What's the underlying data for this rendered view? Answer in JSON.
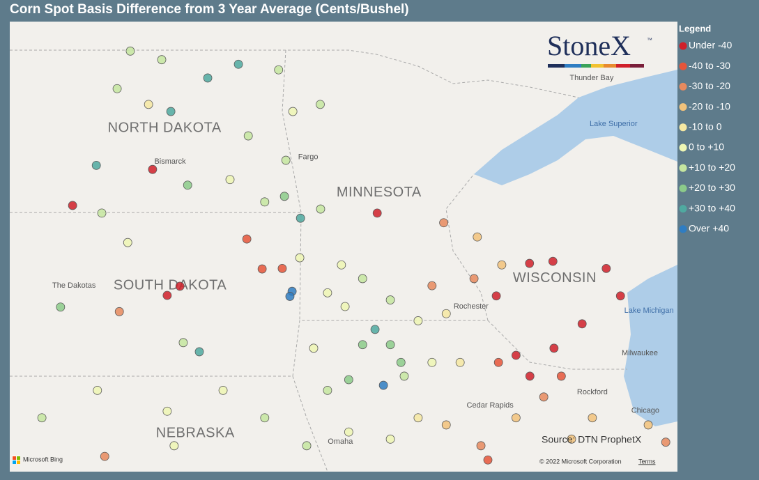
{
  "title": "Corn Spot Basis Difference from 3 Year Average (Cents/Bushel)",
  "legend": {
    "title": "Legend",
    "items": [
      {
        "label": "Under -40",
        "color": "#d0202a"
      },
      {
        "label": "-40 to -30",
        "color": "#e6553a"
      },
      {
        "label": "-30 to -20",
        "color": "#e88a5e"
      },
      {
        "label": "-20 to -10",
        "color": "#f2c27b"
      },
      {
        "label": "-10 to 0",
        "color": "#f6e8a2"
      },
      {
        "label": "0 to +10",
        "color": "#eef6b4"
      },
      {
        "label": "+10 to +20",
        "color": "#c6e6a0"
      },
      {
        "label": "+20 to +30",
        "color": "#8ccb8a"
      },
      {
        "label": "+30 to +40",
        "color": "#4fa9a0"
      },
      {
        "label": "Over +40",
        "color": "#2f7dc2"
      }
    ]
  },
  "map": {
    "bounds": {
      "west": -104.7,
      "east": -86.42,
      "north": 49.56,
      "south": 40.7
    },
    "places": [
      {
        "name": "NORTH DAKOTA",
        "kind": "state",
        "lon": -100.46,
        "lat": 47.46
      },
      {
        "name": "SOUTH DAKOTA",
        "kind": "state",
        "lon": -100.31,
        "lat": 44.36
      },
      {
        "name": "MINNESOTA",
        "kind": "state",
        "lon": -94.59,
        "lat": 46.19
      },
      {
        "name": "WISCONSIN",
        "kind": "state",
        "lon": -89.78,
        "lat": 44.5
      },
      {
        "name": "NEBRASKA",
        "kind": "state",
        "lon": -99.62,
        "lat": 41.45
      },
      {
        "name": "Bismarck",
        "kind": "city",
        "lon": -100.31,
        "lat": 46.8
      },
      {
        "name": "Fargo",
        "kind": "city",
        "lon": -96.53,
        "lat": 46.89
      },
      {
        "name": "The Dakotas",
        "kind": "city",
        "lon": -102.94,
        "lat": 44.36
      },
      {
        "name": "Thunder Bay",
        "kind": "city",
        "lon": -88.77,
        "lat": 48.45
      },
      {
        "name": "Lake Superior",
        "kind": "water",
        "lon": -88.17,
        "lat": 47.54
      },
      {
        "name": "Lake Michigan",
        "kind": "water",
        "lon": -87.2,
        "lat": 43.87
      },
      {
        "name": "Milwaukee",
        "kind": "city",
        "lon": -87.45,
        "lat": 43.03
      },
      {
        "name": "Rockford",
        "kind": "city",
        "lon": -88.75,
        "lat": 42.26
      },
      {
        "name": "Chicago",
        "kind": "city",
        "lon": -87.3,
        "lat": 41.9
      },
      {
        "name": "Omaha",
        "kind": "city",
        "lon": -95.65,
        "lat": 41.29
      },
      {
        "name": "Rochester",
        "kind": "city",
        "lon": -92.07,
        "lat": 43.95
      },
      {
        "name": "Cedar Rapids",
        "kind": "city",
        "lon": -91.55,
        "lat": 42.0
      }
    ],
    "points": [
      {
        "lon": -102.98,
        "lat": 45.94,
        "category": 0
      },
      {
        "lon": -100.79,
        "lat": 46.65,
        "category": 0
      },
      {
        "lon": -100.39,
        "lat": 44.17,
        "category": 0
      },
      {
        "lon": -100.04,
        "lat": 44.35,
        "category": 0
      },
      {
        "lon": -102.33,
        "lat": 46.73,
        "category": 8
      },
      {
        "lon": -100.29,
        "lat": 47.79,
        "category": 8
      },
      {
        "lon": -99.28,
        "lat": 48.45,
        "category": 8
      },
      {
        "lon": -98.44,
        "lat": 48.72,
        "category": 8
      },
      {
        "lon": -101.4,
        "lat": 48.98,
        "category": 6
      },
      {
        "lon": -100.54,
        "lat": 48.81,
        "category": 6
      },
      {
        "lon": -101.76,
        "lat": 48.24,
        "category": 6
      },
      {
        "lon": -100.9,
        "lat": 47.93,
        "category": 4
      },
      {
        "lon": -98.17,
        "lat": 47.31,
        "category": 6
      },
      {
        "lon": -96.95,
        "lat": 47.79,
        "category": 5
      },
      {
        "lon": -96.2,
        "lat": 47.93,
        "category": 6
      },
      {
        "lon": -98.67,
        "lat": 46.45,
        "category": 5
      },
      {
        "lon": -99.83,
        "lat": 46.34,
        "category": 7
      },
      {
        "lon": -101.47,
        "lat": 45.21,
        "category": 5
      },
      {
        "lon": -102.18,
        "lat": 45.79,
        "category": 6
      },
      {
        "lon": -103.31,
        "lat": 43.94,
        "category": 7
      },
      {
        "lon": -101.7,
        "lat": 43.85,
        "category": 2
      },
      {
        "lon": -99.51,
        "lat": 43.06,
        "category": 8
      },
      {
        "lon": -99.95,
        "lat": 43.24,
        "category": 6
      },
      {
        "lon": -98.21,
        "lat": 45.28,
        "category": 1
      },
      {
        "lon": -97.79,
        "lat": 44.69,
        "category": 1
      },
      {
        "lon": -97.24,
        "lat": 44.7,
        "category": 1
      },
      {
        "lon": -96.97,
        "lat": 44.25,
        "category": 9
      },
      {
        "lon": -97.03,
        "lat": 44.15,
        "category": 9
      },
      {
        "lon": -96.74,
        "lat": 45.69,
        "category": 8
      },
      {
        "lon": -97.18,
        "lat": 46.12,
        "category": 7
      },
      {
        "lon": -96.19,
        "lat": 45.87,
        "category": 6
      },
      {
        "lon": -94.64,
        "lat": 45.79,
        "category": 0
      },
      {
        "lon": -94.47,
        "lat": 42.4,
        "category": 9
      },
      {
        "lon": -94.7,
        "lat": 43.5,
        "category": 8
      },
      {
        "lon": -95.04,
        "lat": 43.2,
        "category": 7
      },
      {
        "lon": -94.28,
        "lat": 43.2,
        "category": 7
      },
      {
        "lon": -93.99,
        "lat": 42.85,
        "category": 7
      },
      {
        "lon": -95.42,
        "lat": 42.51,
        "category": 7
      },
      {
        "lon": -96.0,
        "lat": 44.22,
        "category": 5
      },
      {
        "lon": -95.62,
        "lat": 44.77,
        "category": 5
      },
      {
        "lon": -95.04,
        "lat": 44.5,
        "category": 6
      },
      {
        "lon": -93.52,
        "lat": 43.67,
        "category": 5
      },
      {
        "lon": -92.75,
        "lat": 43.81,
        "category": 4
      },
      {
        "lon": -91.99,
        "lat": 44.5,
        "category": 2
      },
      {
        "lon": -93.14,
        "lat": 44.36,
        "category": 2
      },
      {
        "lon": -92.82,
        "lat": 45.6,
        "category": 2
      },
      {
        "lon": -91.9,
        "lat": 45.32,
        "category": 3
      },
      {
        "lon": -91.23,
        "lat": 44.77,
        "category": 3
      },
      {
        "lon": -90.47,
        "lat": 44.8,
        "category": 0
      },
      {
        "lon": -89.83,
        "lat": 44.84,
        "category": 0
      },
      {
        "lon": -88.37,
        "lat": 44.7,
        "category": 0
      },
      {
        "lon": -87.98,
        "lat": 44.16,
        "category": 0
      },
      {
        "lon": -89.03,
        "lat": 43.61,
        "category": 0
      },
      {
        "lon": -89.8,
        "lat": 43.13,
        "category": 0
      },
      {
        "lon": -90.46,
        "lat": 42.58,
        "category": 0
      },
      {
        "lon": -90.84,
        "lat": 42.99,
        "category": 0
      },
      {
        "lon": -91.38,
        "lat": 44.16,
        "category": 0
      },
      {
        "lon": -91.32,
        "lat": 42.85,
        "category": 1
      },
      {
        "lon": -89.6,
        "lat": 42.58,
        "category": 1
      },
      {
        "lon": -90.08,
        "lat": 42.17,
        "category": 2
      },
      {
        "lon": -90.84,
        "lat": 41.76,
        "category": 3
      },
      {
        "lon": -91.8,
        "lat": 41.21,
        "category": 2
      },
      {
        "lon": -92.75,
        "lat": 41.62,
        "category": 3
      },
      {
        "lon": -93.52,
        "lat": 41.76,
        "category": 4
      },
      {
        "lon": -94.28,
        "lat": 41.34,
        "category": 5
      },
      {
        "lon": -95.42,
        "lat": 41.48,
        "category": 5
      },
      {
        "lon": -96.57,
        "lat": 41.21,
        "category": 6
      },
      {
        "lon": -97.72,
        "lat": 41.76,
        "category": 6
      },
      {
        "lon": -98.86,
        "lat": 42.3,
        "category": 5
      },
      {
        "lon": -100.39,
        "lat": 41.89,
        "category": 5
      },
      {
        "lon": -102.3,
        "lat": 42.3,
        "category": 5
      },
      {
        "lon": -103.82,
        "lat": 41.76,
        "category": 6
      },
      {
        "lon": -102.1,
        "lat": 41.0,
        "category": 2
      },
      {
        "lon": -100.2,
        "lat": 41.21,
        "category": 5
      },
      {
        "lon": -88.75,
        "lat": 41.76,
        "category": 3
      },
      {
        "lon": -87.22,
        "lat": 41.62,
        "category": 3
      },
      {
        "lon": -86.74,
        "lat": 41.28,
        "category": 2
      },
      {
        "lon": -89.32,
        "lat": 41.34,
        "category": 3
      },
      {
        "lon": -91.61,
        "lat": 40.93,
        "category": 1
      },
      {
        "lon": -92.37,
        "lat": 42.85,
        "category": 4
      },
      {
        "lon": -96.38,
        "lat": 43.13,
        "category": 5
      },
      {
        "lon": -96.0,
        "lat": 42.3,
        "category": 6
      },
      {
        "lon": -93.9,
        "lat": 42.58,
        "category": 6
      },
      {
        "lon": -93.14,
        "lat": 42.85,
        "category": 5
      },
      {
        "lon": -97.34,
        "lat": 48.61,
        "category": 6
      },
      {
        "lon": -97.14,
        "lat": 46.83,
        "category": 6
      },
      {
        "lon": -97.72,
        "lat": 46.01,
        "category": 6
      },
      {
        "lon": -96.76,
        "lat": 44.91,
        "category": 5
      },
      {
        "lon": -94.28,
        "lat": 44.08,
        "category": 6
      },
      {
        "lon": -95.52,
        "lat": 43.95,
        "category": 5
      }
    ]
  },
  "logo": {
    "text": "StoneX",
    "mark": "™"
  },
  "source": "Source: DTN ProphetX",
  "attribution": {
    "bing": "Microsoft Bing",
    "copyright": "© 2022 Microsoft Corporation",
    "terms": "Terms"
  }
}
